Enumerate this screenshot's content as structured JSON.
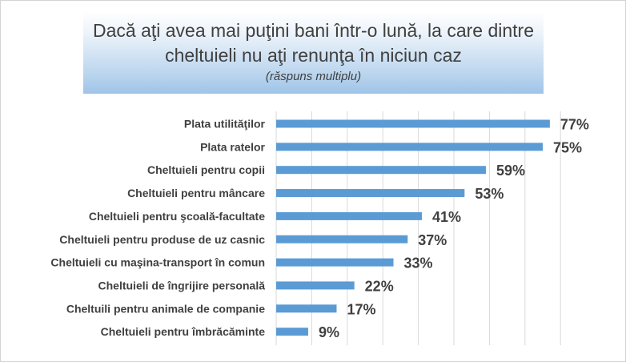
{
  "chart_data": {
    "type": "bar",
    "orientation": "horizontal",
    "title": "Dacă aţi avea mai puţini bani într-o lună, la care dintre cheltuieli nu aţi renunţa în niciun caz",
    "subtitle": "(răspuns multiplu)",
    "xlabel": "",
    "ylabel": "",
    "xlim": [
      0,
      80
    ],
    "grid": true,
    "legend": "none",
    "bar_color": "#5b9bd5",
    "categories": [
      "Plata utilităţilor",
      "Plata ratelor",
      "Cheltuieli pentru copii",
      "Cheltuieli pentru mâncare",
      "Cheltuieli pentru şcoală-facultate",
      "Cheltuieli pentru produse de uz casnic",
      "Cheltuieli cu maşina-transport în comun",
      "Cheltuieli de îngrijire personală",
      "Cheltuili pentru animale de companie",
      "Cheltuieli pentru îmbrăcăminte"
    ],
    "values": [
      77,
      75,
      59,
      53,
      41,
      37,
      33,
      22,
      17,
      9
    ],
    "value_labels": [
      "77%",
      "75%",
      "59%",
      "53%",
      "41%",
      "37%",
      "33%",
      "22%",
      "17%",
      "9%"
    ]
  }
}
